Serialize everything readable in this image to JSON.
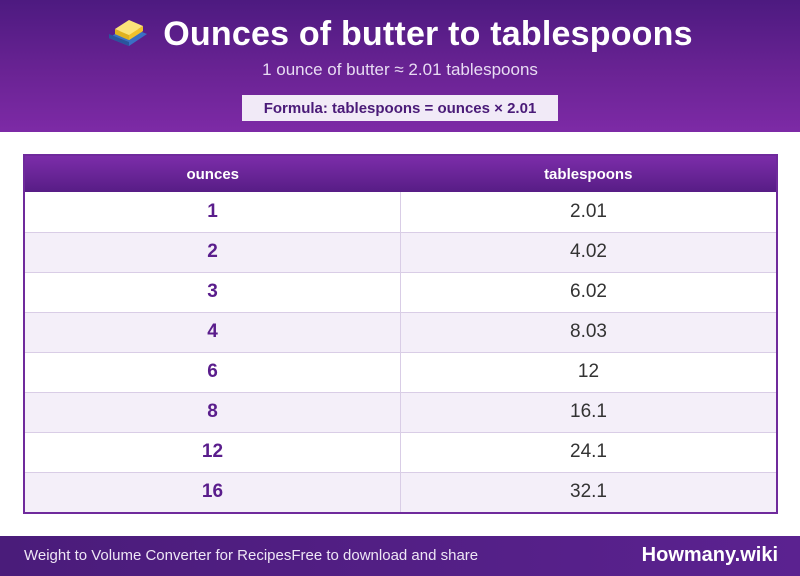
{
  "header": {
    "icon": "butter-icon",
    "title": "Ounces of butter to tablespoons",
    "subtitle": "1 ounce of butter ≈ 2.01 tablespoons",
    "formula": "Formula: tablespoons = ounces × 2.01"
  },
  "table": {
    "columns": [
      "ounces",
      "tablespoons"
    ],
    "rows": [
      {
        "ounces": "1",
        "tablespoons": "2.01"
      },
      {
        "ounces": "2",
        "tablespoons": "4.02"
      },
      {
        "ounces": "3",
        "tablespoons": "6.02"
      },
      {
        "ounces": "4",
        "tablespoons": "8.03"
      },
      {
        "ounces": "6",
        "tablespoons": "12"
      },
      {
        "ounces": "8",
        "tablespoons": "16.1"
      },
      {
        "ounces": "12",
        "tablespoons": "24.1"
      },
      {
        "ounces": "16",
        "tablespoons": "32.1"
      }
    ]
  },
  "footer": {
    "left_text": "Weight to Volume Converter for RecipesFree to download and share",
    "brand": "Howmany.wiki"
  },
  "colors": {
    "header_purple": "#6a2394",
    "accent_purple": "#5a1d8c",
    "row_alt": "#f4eff9",
    "formula_bg": "#f1eaf7"
  }
}
